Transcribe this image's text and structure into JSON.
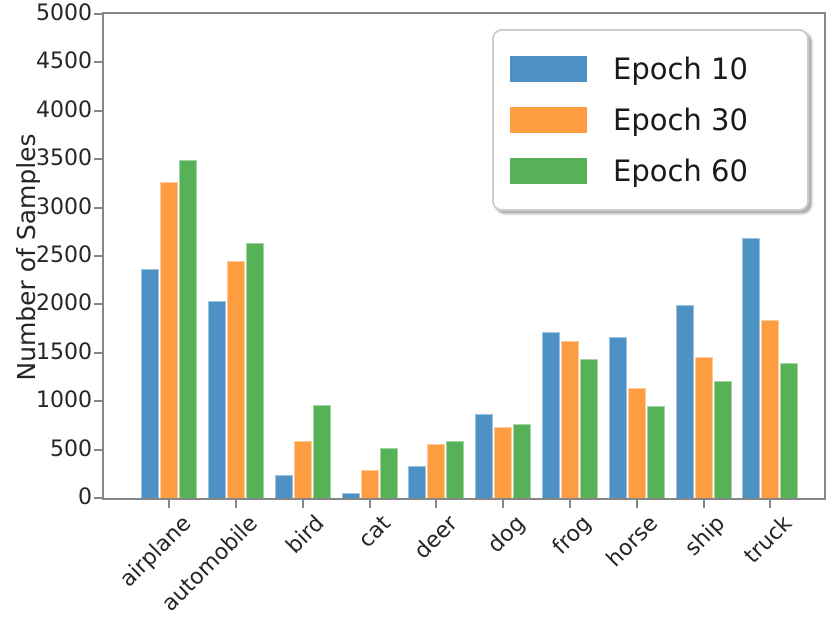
{
  "chart_data": {
    "type": "bar",
    "title": "",
    "xlabel": "",
    "ylabel": "Number of Samples",
    "ylim": [
      0,
      5000
    ],
    "ytick_labels": [
      "0",
      "500",
      "1000",
      "1500",
      "2000",
      "2500",
      "3000",
      "3500",
      "4000",
      "4500",
      "5000"
    ],
    "grid": false,
    "legend_position": "upper right",
    "categories": [
      "airplane",
      "automobile",
      "bird",
      "cat",
      "deer",
      "dog",
      "frog",
      "horse",
      "ship",
      "truck"
    ],
    "series": [
      {
        "name": "Epoch 10",
        "color": "#4E91C4",
        "values": [
          2370,
          2040,
          240,
          50,
          330,
          870,
          1720,
          1660,
          1990,
          2690
        ]
      },
      {
        "name": "Epoch 30",
        "color": "#FE9C42",
        "values": [
          3260,
          2450,
          590,
          290,
          560,
          730,
          1620,
          1140,
          1460,
          1840
        ]
      },
      {
        "name": "Epoch 60",
        "color": "#57B257",
        "values": [
          3490,
          2630,
          960,
          520,
          590,
          760,
          1440,
          950,
          1210,
          1390
        ]
      }
    ],
    "colors": {
      "spine": "#868686",
      "tick_text": "#262626",
      "legend_text": "#1a1a1a"
    }
  }
}
